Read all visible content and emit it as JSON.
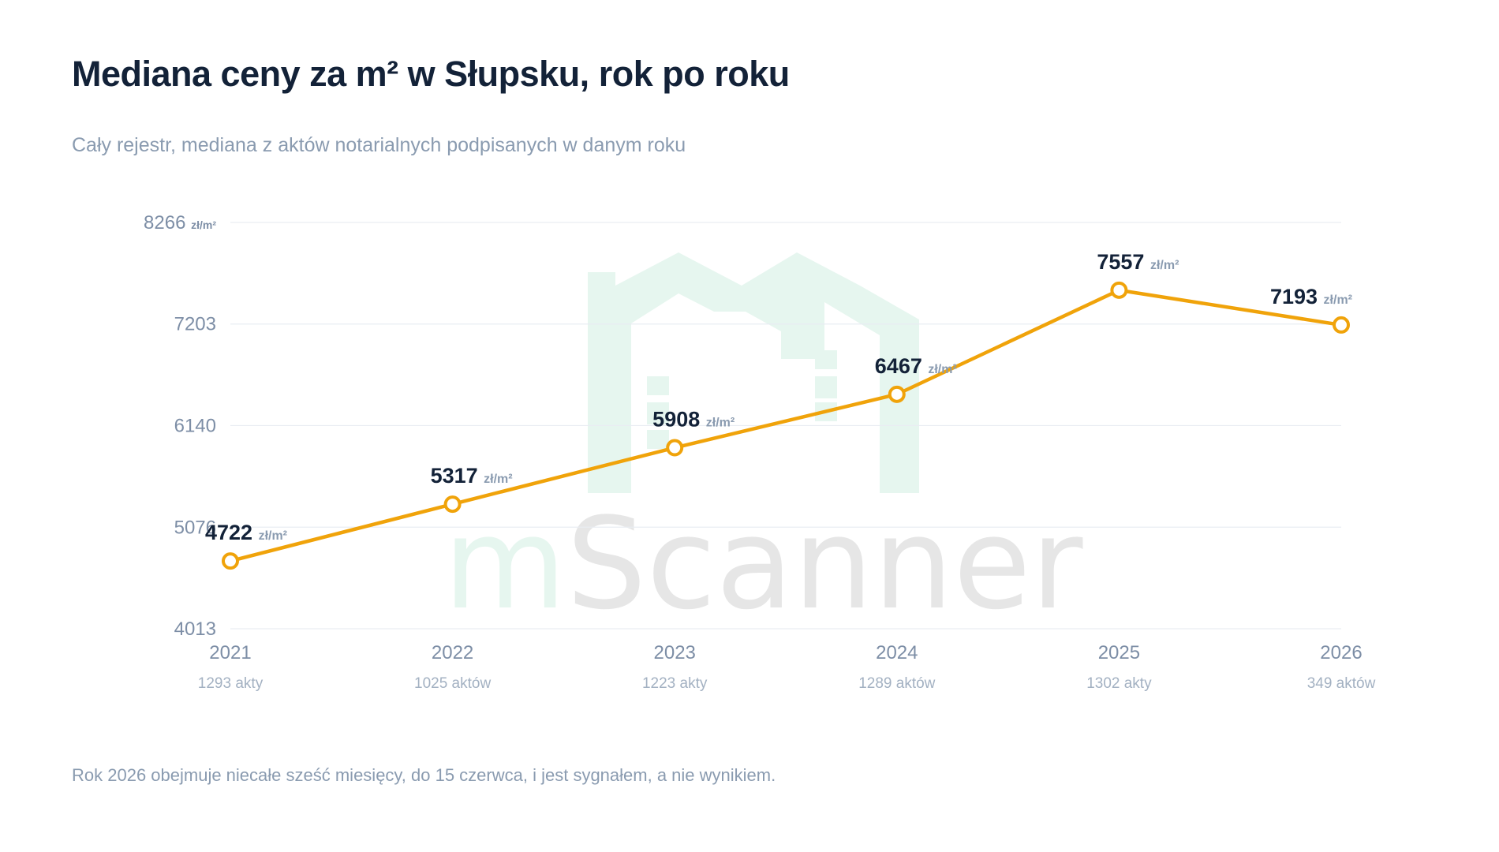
{
  "header": {
    "title": "Mediana ceny za m² w Słupsku, rok po roku",
    "subtitle": "Cały rejestr, mediana z aktów notarialnych podpisanych w danym roku"
  },
  "footnote": "Rok 2026 obejmuje niecałe sześć miesięcy, do 15 czerwca, i jest sygnałem, a nie wynikiem.",
  "watermark": {
    "text_m": "m",
    "text_rest": "Scanner",
    "color_green": "#e6f6ef",
    "color_gray": "#e6e6e6"
  },
  "colors": {
    "line": "#f0a30a",
    "point_fill": "#ffffff",
    "grid": "#e9edf2"
  },
  "chart_data": {
    "type": "line",
    "title": "Mediana ceny za m² w Słupsku, rok po roku",
    "x": [
      "2021",
      "2022",
      "2023",
      "2024",
      "2025",
      "2026"
    ],
    "x_sublabels": [
      "1293 akty",
      "1025 aktów",
      "1223 akty",
      "1289 aktów",
      "1302 akty",
      "349 aktów"
    ],
    "values": [
      4722,
      5317,
      5908,
      6467,
      7557,
      7193
    ],
    "value_unit": "zł/m²",
    "yticks": [
      4013,
      5076,
      6140,
      7203,
      8266
    ],
    "ytick_unit_on_top": "zł/m²",
    "ylim": [
      4013,
      8266
    ],
    "grid": true
  }
}
